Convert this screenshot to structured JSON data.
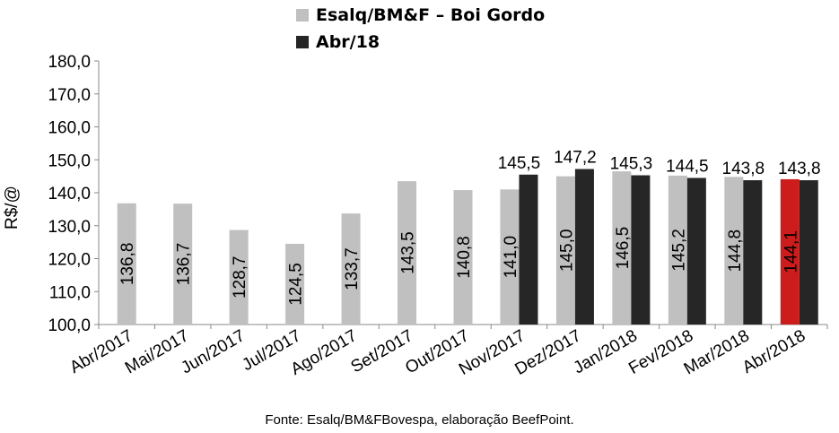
{
  "chart_data": {
    "type": "bar",
    "categories": [
      "Abr/2017",
      "Mai/2017",
      "Jun/2017",
      "Jul/2017",
      "Ago/2017",
      "Set/2017",
      "Out/2017",
      "Nov/2017",
      "Dez/2017",
      "Jan/2018",
      "Fev/2018",
      "Mar/2018",
      "Abr/2018"
    ],
    "series": [
      {
        "name": "Esalq/BM&F – Boi Gordo",
        "color": "#c0c0c0",
        "values": [
          136.8,
          136.7,
          128.7,
          124.5,
          133.7,
          143.5,
          140.8,
          141.0,
          145.0,
          146.5,
          145.2,
          144.8,
          144.1
        ],
        "labels": [
          "136,8",
          "136,7",
          "128,7",
          "124,5",
          "133,7",
          "143,5",
          "140,8",
          "141,0",
          "145,0",
          "146,5",
          "145,2",
          "144,8",
          "144,1"
        ]
      },
      {
        "name": "Abr/18",
        "color": "#262626",
        "values": [
          null,
          null,
          null,
          null,
          null,
          null,
          null,
          145.5,
          147.2,
          145.3,
          144.5,
          143.8,
          143.8
        ],
        "labels": [
          null,
          null,
          null,
          null,
          null,
          null,
          null,
          "145,5",
          "147,2",
          "145,3",
          "144,5",
          "143,8",
          "143,8"
        ]
      }
    ],
    "highlight": {
      "series": 0,
      "category": "Abr/2018",
      "color": "#cc1c1c"
    },
    "ylabel": "R$/@",
    "xlabel": "",
    "ylim": [
      100,
      180
    ],
    "yticks": [
      "100,0",
      "110,0",
      "120,0",
      "130,0",
      "140,0",
      "150,0",
      "160,0",
      "170,0",
      "180,0"
    ],
    "grid": false,
    "legend_position": "top"
  },
  "legend": {
    "items": [
      {
        "label": "Esalq/BM&F – Boi Gordo",
        "color": "#c0c0c0"
      },
      {
        "label": "Abr/18",
        "color": "#262626"
      }
    ]
  },
  "source": "Fonte: Esalq/BM&FBovespa, elaboração BeefPoint."
}
